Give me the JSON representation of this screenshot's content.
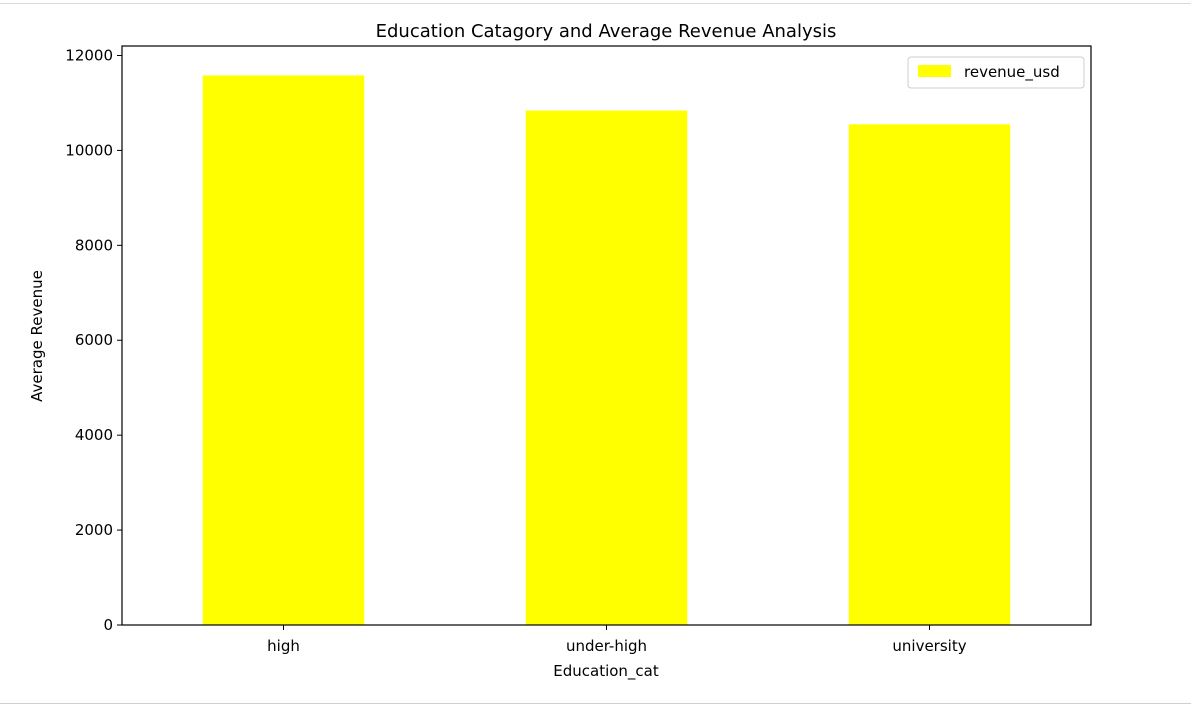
{
  "chart_data": {
    "type": "bar",
    "title": "Education Catagory and Average Revenue Analysis",
    "xlabel": "Education_cat",
    "ylabel": "Average Revenue",
    "categories": [
      "high",
      "under-high",
      "university"
    ],
    "series": [
      {
        "name": "revenue_usd",
        "color": "#ffff00",
        "values": [
          11580,
          10840,
          10550
        ]
      }
    ],
    "ylim": [
      0,
      12200
    ],
    "yticks": [
      0,
      2000,
      4000,
      6000,
      8000,
      10000,
      12000
    ],
    "grid": false,
    "legend_position": "top-right"
  }
}
